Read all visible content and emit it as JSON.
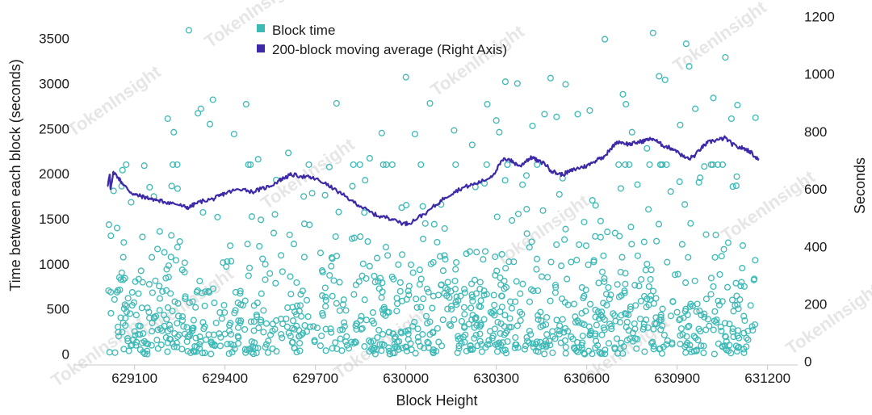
{
  "chart_data": {
    "type": "scatter",
    "watermark": "TokenInsight",
    "xlabel": "Block Height",
    "ylabel": "Time between each block (seconds)",
    "y2label": "Seconds",
    "x_ticks": [
      "629100",
      "629400",
      "629700",
      "630000",
      "630300",
      "630600",
      "630900",
      "631200"
    ],
    "y_ticks": [
      "0",
      "500",
      "1000",
      "1500",
      "2000",
      "2500",
      "3000",
      "3500"
    ],
    "y2_ticks": [
      "0",
      "200",
      "400",
      "600",
      "800",
      "1000",
      "1200"
    ],
    "xlim": [
      628900,
      631300
    ],
    "ylim": [
      -120,
      3800
    ],
    "y2lim": [
      -12,
      1218
    ],
    "colors": {
      "scatter": "#3db9b6",
      "line": "#3d2aa8"
    },
    "legend": [
      {
        "label": "Block time",
        "color": "#3db9b6"
      },
      {
        "label": "200-block moving average (Right Axis)",
        "color": "#3d2aa8"
      }
    ],
    "series": [
      {
        "name": "Block time",
        "type": "scatter",
        "axis": "left",
        "x_range": [
          629010,
          631170
        ],
        "outliers": [
          [
            629280,
            3590
          ],
          [
            629210,
            2610
          ],
          [
            629230,
            2460
          ],
          [
            629310,
            2670
          ],
          [
            629320,
            2720
          ],
          [
            629360,
            2820
          ],
          [
            629350,
            2550
          ],
          [
            629430,
            2440
          ],
          [
            629470,
            2770
          ],
          [
            629510,
            2160
          ],
          [
            629610,
            2230
          ],
          [
            629770,
            2780
          ],
          [
            629880,
            2170
          ],
          [
            629920,
            2450
          ],
          [
            630000,
            3070
          ],
          [
            630030,
            2440
          ],
          [
            630080,
            2780
          ],
          [
            630160,
            2480
          ],
          [
            630220,
            2320
          ],
          [
            630270,
            2770
          ],
          [
            630300,
            2590
          ],
          [
            630310,
            2460
          ],
          [
            630330,
            3020
          ],
          [
            630370,
            3000
          ],
          [
            630420,
            2530
          ],
          [
            630460,
            2660
          ],
          [
            630480,
            3060
          ],
          [
            630500,
            2630
          ],
          [
            630530,
            2990
          ],
          [
            630570,
            2660
          ],
          [
            630610,
            2700
          ],
          [
            630660,
            3490
          ],
          [
            630720,
            2880
          ],
          [
            630730,
            2770
          ],
          [
            630750,
            2460
          ],
          [
            630800,
            2280
          ],
          [
            630820,
            3560
          ],
          [
            630840,
            3080
          ],
          [
            630860,
            3040
          ],
          [
            630910,
            2540
          ],
          [
            630930,
            3440
          ],
          [
            630940,
            3190
          ],
          [
            630960,
            2720
          ],
          [
            631020,
            2840
          ],
          [
            631060,
            3290
          ],
          [
            631080,
            2610
          ],
          [
            631100,
            2760
          ],
          [
            631160,
            2620
          ],
          [
            629060,
            2040
          ],
          [
            629150,
            1850
          ],
          [
            630520,
            1950
          ],
          [
            630990,
            2080
          ],
          [
            629570,
            1930
          ],
          [
            630400,
            1980
          ]
        ]
      },
      {
        "name": "200-block moving average (Right Axis)",
        "type": "line",
        "axis": "right",
        "x": [
          629010,
          629018,
          629020,
          629030,
          629045,
          629060,
          629080,
          629100,
          629120,
          629140,
          629160,
          629180,
          629200,
          629230,
          629260,
          629280,
          629300,
          629330,
          629360,
          629380,
          629400,
          629430,
          629460,
          629490,
          629520,
          629550,
          629580,
          629600,
          629620,
          629650,
          629680,
          629700,
          629730,
          629760,
          629790,
          629820,
          629850,
          629880,
          629910,
          629940,
          629960,
          629990,
          630010,
          630040,
          630070,
          630100,
          630130,
          630160,
          630190,
          630220,
          630250,
          630280,
          630300,
          630320,
          630340,
          630360,
          630380,
          630400,
          630420,
          630440,
          630460,
          630480,
          630500,
          630520,
          630540,
          630560,
          630580,
          630600,
          630620,
          630640,
          630660,
          630680,
          630700,
          630720,
          630740,
          630760,
          630780,
          630800,
          630820,
          630840,
          630860,
          630880,
          630900,
          630920,
          630940,
          630960,
          630980,
          631000,
          631020,
          631040,
          631060,
          631080,
          631100,
          631120,
          631140,
          631160,
          631170
        ],
        "y": [
          610,
          650,
          600,
          660,
          640,
          620,
          595,
          580,
          575,
          570,
          565,
          560,
          555,
          550,
          540,
          535,
          548,
          560,
          565,
          575,
          585,
          595,
          600,
          590,
          600,
          610,
          630,
          640,
          650,
          645,
          640,
          635,
          620,
          600,
          580,
          560,
          540,
          520,
          505,
          500,
          495,
          480,
          480,
          500,
          520,
          545,
          570,
          590,
          605,
          615,
          625,
          640,
          665,
          700,
          705,
          690,
          680,
          700,
          710,
          695,
          690,
          665,
          655,
          650,
          660,
          668,
          675,
          680,
          692,
          705,
          715,
          740,
          765,
          762,
          755,
          760,
          765,
          770,
          775,
          760,
          748,
          742,
          733,
          712,
          705,
          718,
          742,
          760,
          768,
          772,
          778,
          758,
          745,
          742,
          732,
          712,
          706
        ]
      }
    ]
  }
}
